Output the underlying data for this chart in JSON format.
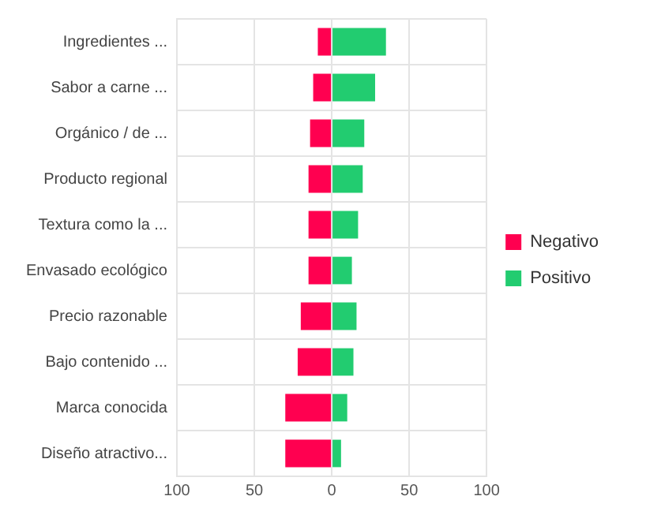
{
  "chart_data": {
    "type": "bar",
    "orientation": "horizontal",
    "stacked": true,
    "categories": [
      "Ingredientes ...",
      "Sabor a carne ...",
      "Orgánico / de ...",
      "Producto regional",
      "Textura como la ...",
      "Envasado ecológico",
      "Precio razonable",
      "Bajo contenido ...",
      "Marca conocida",
      "Diseño atractivo..."
    ],
    "series": [
      {
        "name": "Negativo",
        "color": "#ff0050",
        "values": [
          -9,
          -12,
          -14,
          -15,
          -15,
          -15,
          -20,
          -22,
          -30,
          -30
        ]
      },
      {
        "name": "Positivo",
        "color": "#22cc70",
        "values": [
          35,
          28,
          21,
          20,
          17,
          13,
          16,
          14,
          10,
          6
        ]
      }
    ],
    "xlim": [
      -100,
      100
    ],
    "xticks": [
      {
        "value": -100,
        "label": "100"
      },
      {
        "value": -50,
        "label": "50"
      },
      0,
      50,
      100
    ],
    "grid": true,
    "legend": "right"
  }
}
